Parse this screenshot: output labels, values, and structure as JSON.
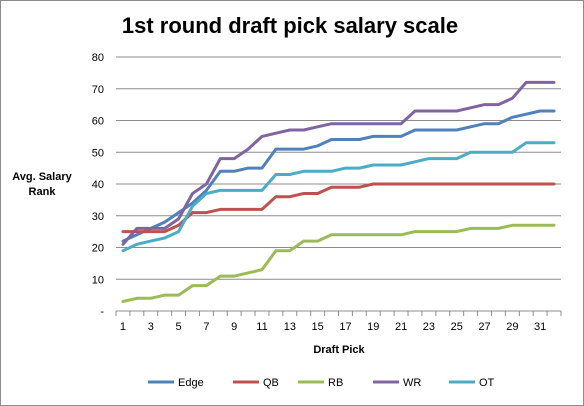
{
  "chart_data": {
    "type": "line",
    "title": "1st round draft pick salary scale",
    "xlabel": "Draft Pick",
    "ylabel": [
      "Avg. Salary",
      "Rank"
    ],
    "ylim": [
      0,
      80
    ],
    "yticks": [
      "-",
      "10",
      "20",
      "30",
      "40",
      "50",
      "60",
      "70",
      "80"
    ],
    "xticks": [
      "1",
      "3",
      "5",
      "7",
      "9",
      "11",
      "13",
      "15",
      "17",
      "19",
      "21",
      "23",
      "25",
      "27",
      "29",
      "31"
    ],
    "x": [
      1,
      2,
      3,
      4,
      5,
      6,
      7,
      8,
      9,
      10,
      11,
      12,
      13,
      14,
      15,
      16,
      17,
      18,
      19,
      20,
      21,
      22,
      23,
      24,
      25,
      26,
      27,
      28,
      29,
      30,
      31,
      32
    ],
    "grid": true,
    "legend_position": "bottom",
    "series": [
      {
        "name": "Edge",
        "color": "#4f81bd",
        "values": [
          22,
          24,
          26,
          28,
          31,
          34,
          38,
          44,
          44,
          45,
          45,
          51,
          51,
          51,
          52,
          54,
          54,
          54,
          55,
          55,
          55,
          57,
          57,
          57,
          57,
          58,
          59,
          59,
          61,
          62,
          63,
          63
        ]
      },
      {
        "name": "QB",
        "color": "#c0504d",
        "values": [
          25,
          25,
          25,
          25,
          27,
          31,
          31,
          32,
          32,
          32,
          32,
          36,
          36,
          37,
          37,
          39,
          39,
          39,
          40,
          40,
          40,
          40,
          40,
          40,
          40,
          40,
          40,
          40,
          40,
          40,
          40,
          40
        ]
      },
      {
        "name": "RB",
        "color": "#9bbb59",
        "values": [
          3,
          4,
          4,
          5,
          5,
          8,
          8,
          11,
          11,
          12,
          13,
          19,
          19,
          22,
          22,
          24,
          24,
          24,
          24,
          24,
          24,
          25,
          25,
          25,
          25,
          26,
          26,
          26,
          27,
          27,
          27,
          27
        ]
      },
      {
        "name": "WR",
        "color": "#8064a2",
        "values": [
          21,
          26,
          26,
          26,
          29,
          37,
          40,
          48,
          48,
          51,
          55,
          56,
          57,
          57,
          58,
          59,
          59,
          59,
          59,
          59,
          59,
          63,
          63,
          63,
          63,
          64,
          65,
          65,
          67,
          72,
          72,
          72
        ]
      },
      {
        "name": "OT",
        "color": "#4bacc6",
        "values": [
          19,
          21,
          22,
          23,
          25,
          33,
          37,
          38,
          38,
          38,
          38,
          43,
          43,
          44,
          44,
          44,
          45,
          45,
          46,
          46,
          46,
          47,
          48,
          48,
          48,
          50,
          50,
          50,
          50,
          53,
          53,
          53
        ]
      }
    ]
  }
}
